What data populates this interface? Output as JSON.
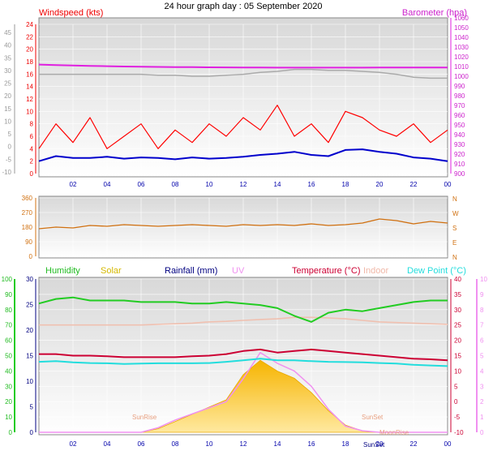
{
  "page_title": "24 hour graph day : 05 September 2020",
  "colors": {
    "windspeed": "#ff0000",
    "wind_avg": "#0000cc",
    "barometer": "#e020e0",
    "gust_grey": "#aaaaaa",
    "direction": "#d07010",
    "humidity": "#22cc22",
    "solar": "#f0c020",
    "rainfall": "#000080",
    "uv": "#f090f0",
    "temperature": "#cc0033",
    "indoor": "#f0c0b0",
    "dewpoint": "#22dddd",
    "plot_bg": "#e6e6e6"
  },
  "x_ticks": [
    "02",
    "04",
    "06",
    "08",
    "10",
    "12",
    "14",
    "16",
    "18",
    "20",
    "22",
    "00"
  ],
  "chart_data": [
    {
      "type": "line",
      "panel": "wind-barometer",
      "left_axis_title": "Windspeed (kts)",
      "right_axis_title": "Barometer (hpa)",
      "left_ticks": [
        "24",
        "22",
        "20",
        "18",
        "16",
        "14",
        "12",
        "10",
        "8",
        "6",
        "4",
        "2",
        "0"
      ],
      "outer_left_ticks": [
        "45",
        "40",
        "35",
        "30",
        "25",
        "20",
        "15",
        "10",
        "5",
        "0",
        "-5",
        "-10"
      ],
      "right_ticks": [
        "1060",
        "1050",
        "1040",
        "1030",
        "1020",
        "1010",
        "1000",
        "990",
        "980",
        "970",
        "960",
        "950",
        "940",
        "930",
        "920",
        "910",
        "900"
      ],
      "series": [
        {
          "id": "barometer",
          "y": [
            1012,
            1011.5,
            1011,
            1010.6,
            1010.3,
            1010,
            1009.8,
            1009.6,
            1009.4,
            1009.3,
            1009.2,
            1009.1,
            1009,
            1008.9,
            1008.8,
            1008.8,
            1008.8,
            1008.8,
            1008.8,
            1008.8,
            1008.9,
            1009,
            1009,
            1009,
            1009
          ]
        },
        {
          "id": "grey",
          "y": [
            1002,
            1002,
            1002,
            1002,
            1002,
            1002,
            1002,
            1001,
            1001,
            1000,
            1000,
            1001,
            1002,
            1004,
            1005,
            1007,
            1007,
            1006,
            1006,
            1005,
            1004,
            1002,
            999,
            998,
            998
          ]
        },
        {
          "id": "wind-average",
          "y": [
            2.0,
            2.8,
            2.5,
            2.5,
            2.7,
            2.4,
            2.6,
            2.5,
            2.3,
            2.6,
            2.4,
            2.5,
            2.7,
            3.0,
            3.2,
            3.5,
            3.0,
            2.8,
            3.8,
            3.9,
            3.5,
            3.2,
            2.6,
            2.4,
            2.0
          ]
        },
        {
          "id": "windspeed",
          "y": [
            4,
            8,
            5,
            9,
            4,
            6,
            8,
            4,
            7,
            5,
            8,
            6,
            9,
            7,
            11,
            6,
            8,
            5,
            10,
            9,
            7,
            6,
            8,
            5,
            7
          ]
        }
      ]
    },
    {
      "type": "line",
      "panel": "wind-direction",
      "left_ticks": [
        "360",
        "270",
        "180",
        "90",
        "0"
      ],
      "right_ticks": [
        "N",
        "W",
        "S",
        "E",
        "N"
      ],
      "series": [
        {
          "id": "direction",
          "y": [
            170,
            180,
            175,
            190,
            185,
            195,
            190,
            185,
            190,
            195,
            190,
            185,
            195,
            190,
            195,
            190,
            200,
            190,
            195,
            205,
            230,
            220,
            200,
            215,
            205
          ]
        }
      ]
    },
    {
      "type": "line",
      "panel": "humidity-temperature",
      "legend": [
        "Humidity",
        "Solar",
        "Rainfall (mm)",
        "UV",
        "Temperature (°C)",
        "Indoor",
        "Dew Point (°C)"
      ],
      "left_ticks_humidity": [
        "100",
        "90",
        "80",
        "70",
        "60",
        "50",
        "40",
        "30",
        "20",
        "10",
        "0"
      ],
      "left_ticks_rain": [
        "30",
        "25",
        "20",
        "15",
        "10",
        "5",
        "0"
      ],
      "right_ticks_temp": [
        "40",
        "35",
        "30",
        "25",
        "20",
        "15",
        "10",
        "5",
        "0",
        "-5",
        "-10"
      ],
      "right_ticks_uv": [
        "10",
        "9",
        "8",
        "7",
        "6",
        "5",
        "4",
        "3",
        "2",
        "1",
        "0"
      ],
      "annotations": [
        "SunRise",
        "SunSet",
        "MoonRise",
        "SunSet"
      ],
      "series": [
        {
          "id": "humidity",
          "y": [
            84,
            87,
            88,
            86,
            86,
            86,
            85,
            85,
            85,
            84,
            84,
            85,
            84,
            83,
            81,
            76,
            72,
            78,
            80,
            79,
            81,
            83,
            85,
            86,
            86
          ]
        },
        {
          "id": "indoor",
          "y": [
            25,
            25,
            25,
            25,
            25,
            25,
            25,
            25.2,
            25.4,
            25.6,
            26,
            26.2,
            26.5,
            26.8,
            27,
            27.5,
            27.5,
            27.3,
            27,
            26.5,
            26,
            25.8,
            25.6,
            25.4,
            25.2
          ]
        },
        {
          "id": "temperature",
          "y": [
            15.5,
            15.5,
            15,
            15,
            14.8,
            14.5,
            14.5,
            14.5,
            14.5,
            14.8,
            15,
            15.5,
            16.5,
            17,
            16,
            16.5,
            17,
            16.5,
            16,
            15.5,
            15,
            14.5,
            14,
            13.8,
            13.5
          ]
        },
        {
          "id": "dewpoint",
          "y": [
            13,
            13.2,
            12.8,
            12.6,
            12.5,
            12.3,
            12.4,
            12.5,
            12.5,
            12.5,
            12.6,
            13,
            13.5,
            14,
            13.5,
            13.5,
            13.2,
            13,
            12.9,
            12.8,
            12.6,
            12.4,
            12,
            11.8,
            11.6
          ]
        },
        {
          "id": "solar",
          "y": [
            0,
            0,
            0,
            0,
            0,
            0,
            0,
            5,
            15,
            25,
            35,
            45,
            80,
            100,
            85,
            75,
            55,
            30,
            10,
            2,
            0,
            0,
            0,
            0,
            0
          ]
        },
        {
          "id": "uv",
          "y": [
            0,
            0,
            0,
            0,
            0,
            0,
            0,
            0.3,
            0.8,
            1.2,
            1.6,
            2.0,
            3.5,
            5.2,
            4.5,
            4.0,
            3.0,
            1.5,
            0.4,
            0.1,
            0,
            0,
            0,
            0,
            0
          ]
        }
      ]
    }
  ]
}
